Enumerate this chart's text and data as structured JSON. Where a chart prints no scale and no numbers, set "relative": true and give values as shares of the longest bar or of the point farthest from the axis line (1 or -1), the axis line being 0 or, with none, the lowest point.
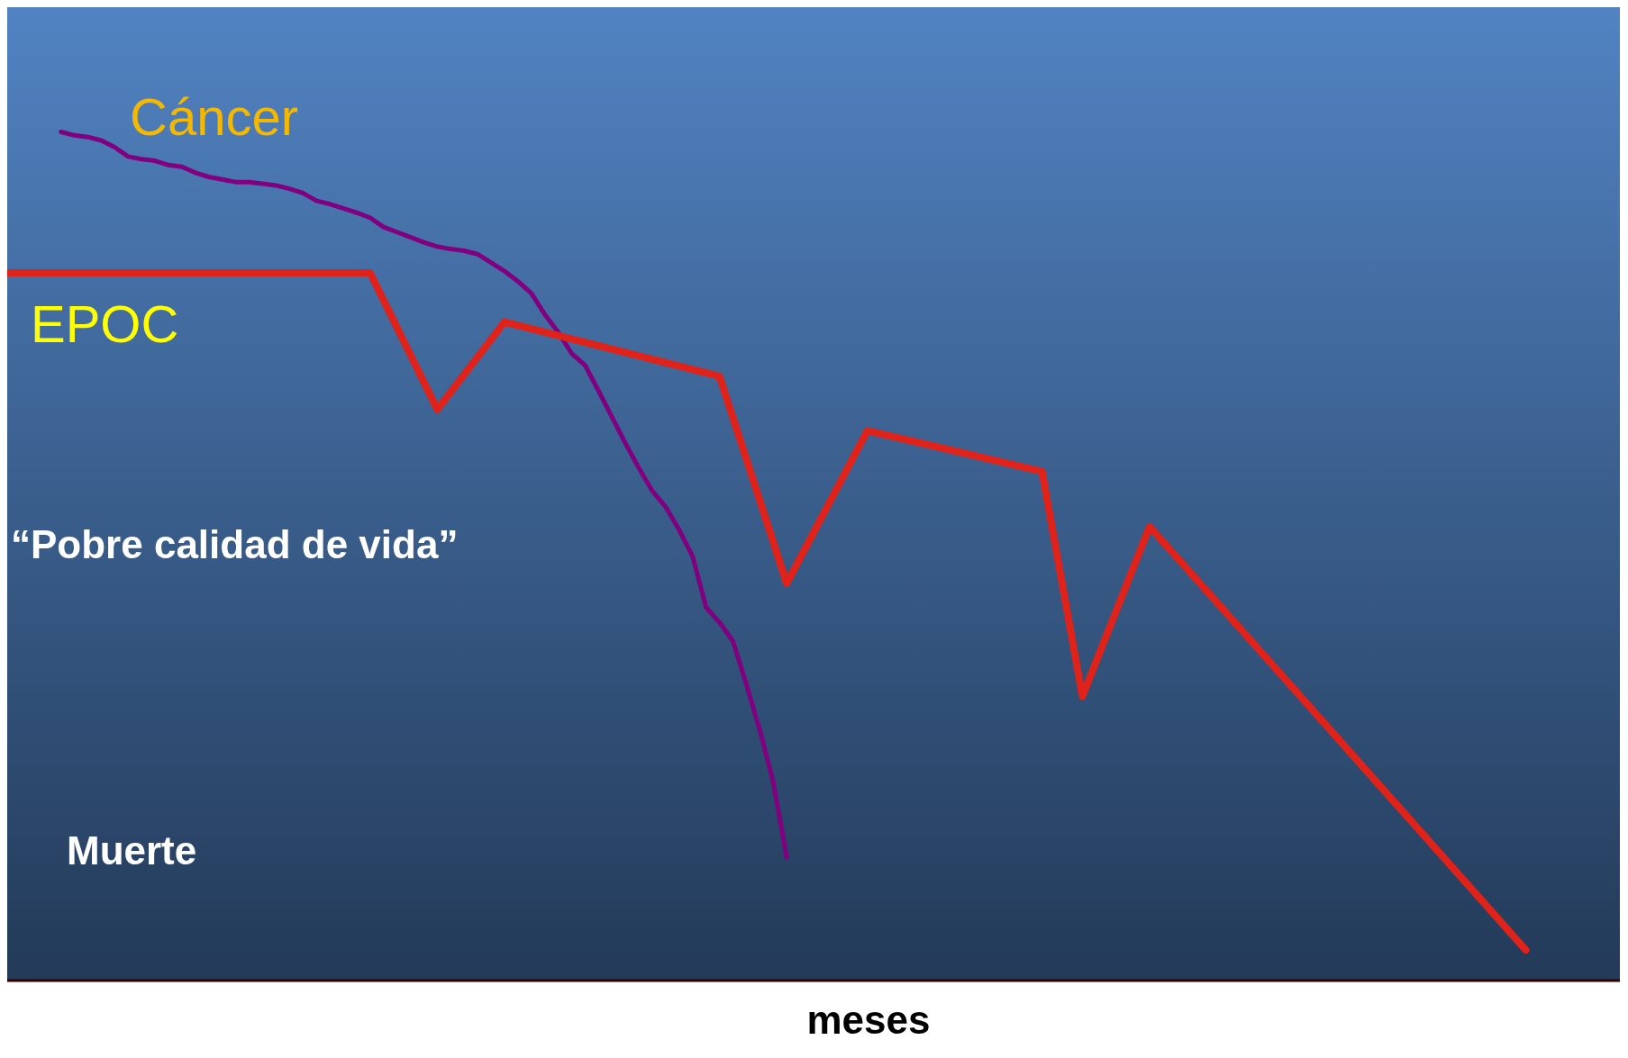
{
  "chart_data": {
    "type": "line",
    "relative": true,
    "xlabel": "meses",
    "grid": false,
    "legend": false,
    "marker": "none",
    "line_style": "solid",
    "annotations": [
      "“Pobre calidad de vida”",
      "Muerte"
    ],
    "categories": [
      null,
      null,
      null,
      null,
      null,
      null,
      null,
      null,
      null,
      null,
      null,
      null,
      null,
      null,
      null,
      null,
      null,
      null,
      null,
      null,
      null,
      null,
      null,
      null,
      null,
      null,
      null,
      null,
      null,
      null,
      null,
      null,
      null,
      null,
      null,
      null,
      null,
      null,
      null,
      null,
      null,
      null,
      null,
      null,
      null,
      null,
      null,
      null,
      null,
      null,
      null,
      null,
      null,
      null,
      null,
      null,
      null,
      null,
      null,
      null,
      null,
      null,
      null,
      null,
      null,
      null,
      null,
      null,
      null,
      null,
      null,
      null,
      null,
      null,
      null,
      null,
      null,
      null,
      null,
      null,
      null,
      null,
      null,
      null,
      null,
      null,
      null,
      null,
      null,
      null,
      null,
      null,
      null,
      null,
      null,
      null,
      null,
      null,
      null,
      null,
      null,
      null,
      null,
      null,
      null,
      null,
      null,
      null,
      null,
      null,
      null,
      null,
      null,
      null,
      null,
      null,
      null,
      null,
      null,
      null,
      null
    ],
    "series": [
      {
        "name": "Cáncer",
        "color": "#800080",
        "values": [
          null,
          null,
          null,
          null,
          1.0,
          0.996,
          0.994,
          0.99,
          0.982,
          0.971,
          0.968,
          0.966,
          0.961,
          0.959,
          0.952,
          0.947,
          0.944,
          0.941,
          0.941,
          0.939,
          0.937,
          0.933,
          0.928,
          0.919,
          0.915,
          0.91,
          0.905,
          0.899,
          0.888,
          0.882,
          0.876,
          0.87,
          0.865,
          0.862,
          0.86,
          0.856,
          0.846,
          0.836,
          0.824,
          0.81,
          0.785,
          0.764,
          0.739,
          0.725,
          0.695,
          0.664,
          0.633,
          0.604,
          0.577,
          0.558,
          0.531,
          0.5,
          0.44,
          0.422,
          0.4,
          0.349,
          0.295,
          0.234,
          0.145,
          null,
          null,
          null,
          null,
          null,
          null,
          null,
          null,
          null,
          null,
          null,
          null,
          null,
          null,
          null,
          null,
          null,
          null,
          null,
          null,
          null,
          null,
          null,
          null,
          null,
          null,
          null,
          null,
          null,
          null,
          null,
          null,
          null,
          null,
          null,
          null,
          null,
          null,
          null,
          null,
          null,
          null,
          null,
          null,
          null,
          null,
          null,
          null,
          null,
          null,
          null,
          null,
          null,
          null,
          null,
          null,
          null,
          null,
          null,
          null,
          null,
          null
        ]
      },
      {
        "name": "EPOC",
        "color": "#e0231a",
        "values": [
          0.834,
          null,
          null,
          null,
          null,
          null,
          null,
          null,
          null,
          null,
          null,
          null,
          null,
          null,
          null,
          null,
          null,
          null,
          null,
          null,
          null,
          null,
          null,
          null,
          null,
          null,
          null,
          0.834,
          null,
          null,
          null,
          null,
          0.673,
          null,
          null,
          null,
          null,
          0.776,
          null,
          null,
          null,
          null,
          null,
          null,
          null,
          null,
          null,
          null,
          null,
          null,
          null,
          null,
          null,
          0.712,
          null,
          null,
          null,
          null,
          0.468,
          null,
          null,
          null,
          null,
          null,
          0.648,
          null,
          null,
          null,
          null,
          null,
          null,
          null,
          null,
          null,
          null,
          null,
          null,
          0.6,
          null,
          null,
          0.335,
          null,
          null,
          null,
          null,
          0.535,
          null,
          null,
          null,
          null,
          null,
          null,
          null,
          null,
          null,
          null,
          null,
          null,
          null,
          null,
          null,
          null,
          null,
          null,
          null,
          null,
          null,
          null,
          null,
          null,
          null,
          null,
          null,
          0.036,
          null,
          null,
          null,
          null,
          null,
          null,
          null
        ]
      }
    ]
  }
}
